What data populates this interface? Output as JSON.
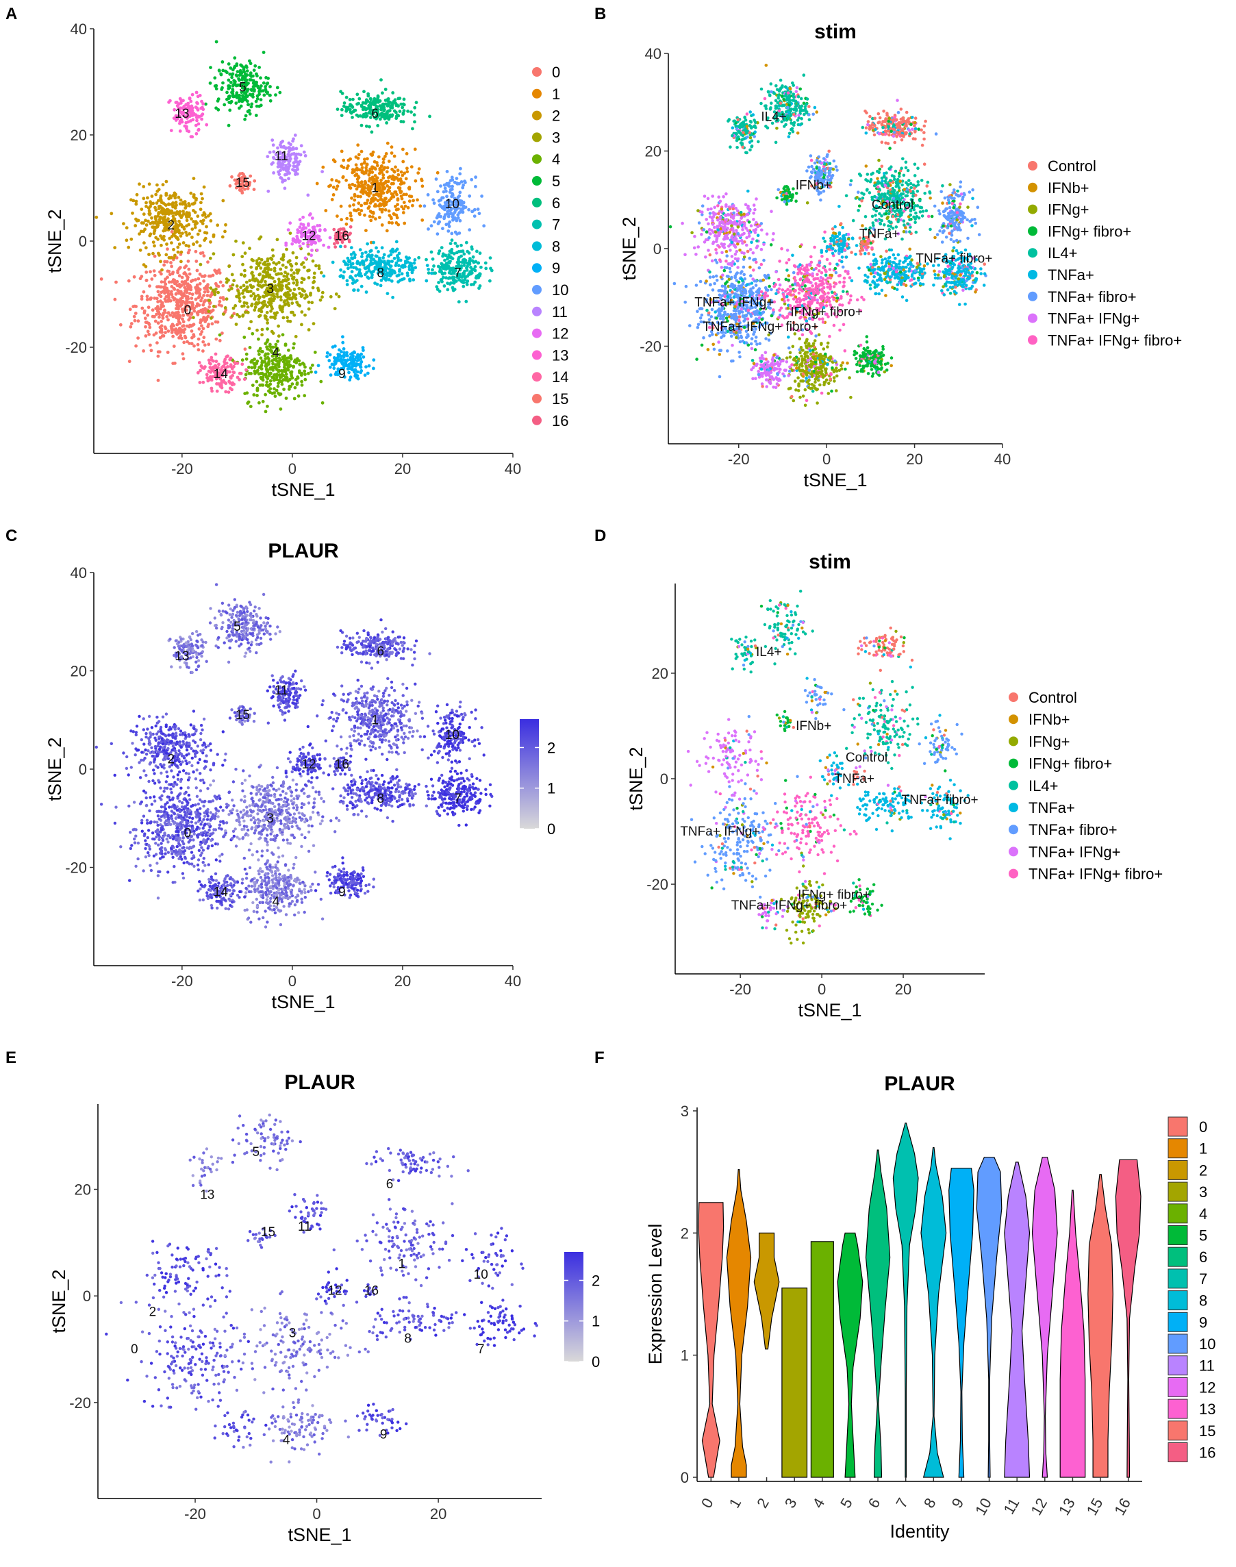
{
  "colors": {
    "clusters": [
      "#F8766D",
      "#E58700",
      "#C99800",
      "#A3A500",
      "#6BB100",
      "#00BA38",
      "#00BF7D",
      "#00C0AF",
      "#00BCD8",
      "#00B0F6",
      "#619CFF",
      "#B983FF",
      "#E76BF3",
      "#FD61D1",
      "#FF67A4",
      "#F8766D",
      "#F45E84"
    ],
    "stim": [
      "#F8766D",
      "#D39200",
      "#93AA00",
      "#00BA38",
      "#00C19F",
      "#00B9E3",
      "#619CFF",
      "#DB72FB",
      "#FF61C3"
    ],
    "gradient_low": "#d9d9d9",
    "gradient_high": "#3a2ee0"
  },
  "chart_data": [
    {
      "panel": "A",
      "type": "scatter",
      "title": "",
      "xlabel": "tSNE_1",
      "ylabel": "tSNE_2",
      "xlim": [
        -36,
        40
      ],
      "ylim": [
        -40,
        40
      ],
      "xticks": [
        "-20",
        "0",
        "20",
        "40"
      ],
      "yticks": [
        "-20",
        "0",
        "20",
        "40"
      ],
      "legend_labels": [
        "0",
        "1",
        "2",
        "3",
        "4",
        "5",
        "6",
        "7",
        "8",
        "9",
        "10",
        "11",
        "12",
        "13",
        "14",
        "15",
        "16"
      ],
      "cluster_labels": [
        {
          "label": "0",
          "x": -19,
          "y": -13
        },
        {
          "label": "1",
          "x": 15,
          "y": 10
        },
        {
          "label": "2",
          "x": -22,
          "y": 3
        },
        {
          "label": "3",
          "x": -4,
          "y": -9
        },
        {
          "label": "4",
          "x": -3,
          "y": -21
        },
        {
          "label": "5",
          "x": -9,
          "y": 29
        },
        {
          "label": "6",
          "x": 15,
          "y": 24
        },
        {
          "label": "7",
          "x": 30,
          "y": -6
        },
        {
          "label": "8",
          "x": 16,
          "y": -6
        },
        {
          "label": "9",
          "x": 9,
          "y": -25
        },
        {
          "label": "10",
          "x": 29,
          "y": 7
        },
        {
          "label": "11",
          "x": -2,
          "y": 16
        },
        {
          "label": "12",
          "x": 3,
          "y": 1
        },
        {
          "label": "13",
          "x": -20,
          "y": 24
        },
        {
          "label": "14",
          "x": -13,
          "y": -25
        },
        {
          "label": "15",
          "x": -9,
          "y": 11
        },
        {
          "label": "16",
          "x": 9,
          "y": 1
        }
      ]
    },
    {
      "panel": "B",
      "type": "scatter",
      "title": "stim",
      "xlabel": "tSNE_1",
      "ylabel": "tSNE_2",
      "xlim": [
        -36,
        40
      ],
      "ylim": [
        -40,
        40
      ],
      "xticks": [
        "-20",
        "0",
        "20",
        "40"
      ],
      "yticks": [
        "-20",
        "0",
        "20",
        "40"
      ],
      "legend_labels": [
        "Control",
        "IFNb+",
        "IFNg+",
        "IFNg+ fibro+",
        "IL4+",
        "TNFa+",
        "TNFa+ fibro+",
        "TNFa+ IFNg+",
        "TNFa+ IFNg+ fibro+"
      ],
      "group_labels": [
        {
          "label": "IL4+",
          "x": -12,
          "y": 27
        },
        {
          "label": "IFNb+",
          "x": -3,
          "y": 13
        },
        {
          "label": "Control",
          "x": 15,
          "y": 9
        },
        {
          "label": "TNFa+",
          "x": 12,
          "y": 3
        },
        {
          "label": "TNFa+ fibro+",
          "x": 29,
          "y": -2
        },
        {
          "label": "IFNg+ fibro+",
          "x": 0,
          "y": -13
        },
        {
          "label": "TNFa+ IFNg+",
          "x": -21,
          "y": -11
        },
        {
          "label": "TNFa+ IFNg+ fibro+",
          "x": -15,
          "y": -16
        }
      ]
    },
    {
      "panel": "C",
      "type": "scatter",
      "title": "PLAUR",
      "xlabel": "tSNE_1",
      "ylabel": "tSNE_2",
      "xlim": [
        -36,
        40
      ],
      "ylim": [
        -40,
        40
      ],
      "xticks": [
        "-20",
        "0",
        "20",
        "40"
      ],
      "yticks": [
        "-20",
        "0",
        "20",
        "40"
      ],
      "colorbar_ticks": [
        "2",
        "1",
        "0"
      ],
      "colorbar_range": [
        0,
        2.7
      ],
      "cluster_labels": [
        {
          "label": "0",
          "x": -19,
          "y": -13
        },
        {
          "label": "1",
          "x": 15,
          "y": 10
        },
        {
          "label": "2",
          "x": -22,
          "y": 2
        },
        {
          "label": "3",
          "x": -4,
          "y": -10
        },
        {
          "label": "4",
          "x": -3,
          "y": -27
        },
        {
          "label": "5",
          "x": -10,
          "y": 29
        },
        {
          "label": "6",
          "x": 16,
          "y": 24
        },
        {
          "label": "7",
          "x": 30,
          "y": -6
        },
        {
          "label": "8",
          "x": 16,
          "y": -6
        },
        {
          "label": "9",
          "x": 9,
          "y": -25
        },
        {
          "label": "10",
          "x": 29,
          "y": 7
        },
        {
          "label": "11",
          "x": -2,
          "y": 16
        },
        {
          "label": "12",
          "x": 3,
          "y": 1
        },
        {
          "label": "13",
          "x": -20,
          "y": 23
        },
        {
          "label": "14",
          "x": -13,
          "y": -25
        },
        {
          "label": "15",
          "x": -9,
          "y": 11
        },
        {
          "label": "16",
          "x": 9,
          "y": 1
        }
      ]
    },
    {
      "panel": "D",
      "type": "scatter",
      "title": "stim",
      "xlabel": "tSNE_1",
      "ylabel": "tSNE_2",
      "xlim": [
        -36,
        40
      ],
      "ylim": [
        -37,
        37
      ],
      "xticks": [
        "-20",
        "0",
        "20"
      ],
      "yticks": [
        "-20",
        "0",
        "20"
      ],
      "legend_labels": [
        "Control",
        "IFNb+",
        "IFNg+",
        "IFNg+ fibro+",
        "IL4+",
        "TNFa+",
        "TNFa+ fibro+",
        "TNFa+ IFNg+",
        "TNFa+ IFNg+ fibro+"
      ],
      "group_labels": [
        {
          "label": "IL4+",
          "x": -13,
          "y": 24
        },
        {
          "label": "IFNb+",
          "x": -2,
          "y": 10
        },
        {
          "label": "Control",
          "x": 11,
          "y": 4
        },
        {
          "label": "TNFa+",
          "x": 8,
          "y": 0
        },
        {
          "label": "TNFa+ fibro+",
          "x": 29,
          "y": -4
        },
        {
          "label": "TNFa+ IFNg+",
          "x": -25,
          "y": -10
        },
        {
          "label": "TNFa+ IFNg+ fibro+",
          "x": -8,
          "y": -24
        },
        {
          "label": "IFNg+ fibro+",
          "x": 3,
          "y": -22
        }
      ]
    },
    {
      "panel": "E",
      "type": "scatter",
      "title": "PLAUR",
      "xlabel": "tSNE_1",
      "ylabel": "tSNE_2",
      "xlim": [
        -36,
        37
      ],
      "ylim": [
        -38,
        36
      ],
      "xticks": [
        "-20",
        "0",
        "20"
      ],
      "yticks": [
        "-20",
        "0",
        "20"
      ],
      "colorbar_ticks": [
        "2",
        "1",
        "0"
      ],
      "colorbar_range": [
        0,
        2.7
      ],
      "cluster_labels": [
        {
          "label": "0",
          "x": -30,
          "y": -10
        },
        {
          "label": "2",
          "x": -27,
          "y": -3
        },
        {
          "label": "3",
          "x": -4,
          "y": -7
        },
        {
          "label": "4",
          "x": -5,
          "y": -27
        },
        {
          "label": "5",
          "x": -10,
          "y": 27
        },
        {
          "label": "6",
          "x": 12,
          "y": 21
        },
        {
          "label": "7",
          "x": 27,
          "y": -10
        },
        {
          "label": "8",
          "x": 15,
          "y": -8
        },
        {
          "label": "9",
          "x": 11,
          "y": -26
        },
        {
          "label": "10",
          "x": 27,
          "y": 4
        },
        {
          "label": "11",
          "x": -2,
          "y": 13
        },
        {
          "label": "12",
          "x": 3,
          "y": 1
        },
        {
          "label": "13",
          "x": -18,
          "y": 19
        },
        {
          "label": "15",
          "x": -8,
          "y": 12
        },
        {
          "label": "16",
          "x": 9,
          "y": 1
        },
        {
          "label": "1",
          "x": 14,
          "y": 6
        }
      ]
    },
    {
      "panel": "F",
      "type": "violin",
      "title": "PLAUR",
      "xlabel": "Identity",
      "ylabel": "Expression Level",
      "ylim": [
        0,
        3
      ],
      "yticks": [
        "0",
        "1",
        "2",
        "3"
      ],
      "categories": [
        "0",
        "1",
        "2",
        "3",
        "4",
        "5",
        "6",
        "7",
        "8",
        "9",
        "10",
        "11",
        "12",
        "13",
        "15",
        "16"
      ],
      "profiles": [
        {
          "max": 2.25,
          "shape": [
            [
              0,
              0.1
            ],
            [
              0.3,
              0.35
            ],
            [
              0.6,
              0.05
            ],
            [
              1.0,
              0.12
            ],
            [
              1.4,
              0.3
            ],
            [
              1.8,
              0.45
            ],
            [
              2.05,
              0.5
            ],
            [
              2.25,
              0.48
            ]
          ]
        },
        {
          "max": 2.52,
          "shape": [
            [
              0,
              0.3
            ],
            [
              0.1,
              0.3
            ],
            [
              0.25,
              0.15
            ],
            [
              0.6,
              0.04
            ],
            [
              1.0,
              0.12
            ],
            [
              1.4,
              0.35
            ],
            [
              1.8,
              0.48
            ],
            [
              2.1,
              0.3
            ],
            [
              2.35,
              0.08
            ],
            [
              2.52,
              0.02
            ]
          ]
        },
        {
          "max": 2.0,
          "shape": [
            [
              1.05,
              0.05
            ],
            [
              1.3,
              0.2
            ],
            [
              1.6,
              0.5
            ],
            [
              1.8,
              0.3
            ],
            [
              2.0,
              0.3
            ]
          ]
        },
        {
          "max": 1.55,
          "shape": [
            [
              0,
              0.5
            ],
            [
              1.55,
              0.5
            ]
          ]
        },
        {
          "max": 1.93,
          "shape": [
            [
              0,
              0.45
            ],
            [
              1.93,
              0.45
            ]
          ]
        },
        {
          "max": 2.0,
          "shape": [
            [
              0,
              0.2
            ],
            [
              0.2,
              0.15
            ],
            [
              0.6,
              0.05
            ],
            [
              0.9,
              0.12
            ],
            [
              1.3,
              0.4
            ],
            [
              1.6,
              0.5
            ],
            [
              1.9,
              0.3
            ],
            [
              2.0,
              0.2
            ]
          ]
        },
        {
          "max": 2.68,
          "shape": [
            [
              0,
              0.15
            ],
            [
              0.25,
              0.12
            ],
            [
              0.6,
              0.02
            ],
            [
              1.0,
              0.15
            ],
            [
              1.4,
              0.3
            ],
            [
              1.8,
              0.48
            ],
            [
              2.2,
              0.35
            ],
            [
              2.5,
              0.12
            ],
            [
              2.68,
              0.02
            ]
          ]
        },
        {
          "max": 2.9,
          "shape": [
            [
              0,
              0.02
            ],
            [
              0.7,
              0.02
            ],
            [
              1.4,
              0.05
            ],
            [
              1.9,
              0.15
            ],
            [
              2.2,
              0.4
            ],
            [
              2.45,
              0.5
            ],
            [
              2.65,
              0.35
            ],
            [
              2.9,
              0.02
            ]
          ]
        },
        {
          "max": 2.7,
          "shape": [
            [
              0,
              0.4
            ],
            [
              0.2,
              0.15
            ],
            [
              0.5,
              0.02
            ],
            [
              1.0,
              0.05
            ],
            [
              1.5,
              0.2
            ],
            [
              2.0,
              0.5
            ],
            [
              2.3,
              0.35
            ],
            [
              2.55,
              0.1
            ],
            [
              2.7,
              0.02
            ]
          ]
        },
        {
          "max": 2.53,
          "shape": [
            [
              0,
              0.1
            ],
            [
              0.3,
              0.04
            ],
            [
              0.7,
              0.02
            ],
            [
              1.1,
              0.1
            ],
            [
              1.5,
              0.25
            ],
            [
              2.0,
              0.45
            ],
            [
              2.35,
              0.5
            ],
            [
              2.53,
              0.4
            ]
          ]
        },
        {
          "max": 2.62,
          "shape": [
            [
              0,
              0.04
            ],
            [
              0.3,
              0.02
            ],
            [
              0.8,
              0.02
            ],
            [
              1.3,
              0.1
            ],
            [
              1.8,
              0.3
            ],
            [
              2.2,
              0.5
            ],
            [
              2.5,
              0.45
            ],
            [
              2.62,
              0.2
            ]
          ]
        },
        {
          "max": 2.58,
          "shape": [
            [
              0,
              0.5
            ],
            [
              0.3,
              0.45
            ],
            [
              0.8,
              0.3
            ],
            [
              1.2,
              0.2
            ],
            [
              1.6,
              0.35
            ],
            [
              2.0,
              0.5
            ],
            [
              2.3,
              0.35
            ],
            [
              2.58,
              0.05
            ]
          ]
        },
        {
          "max": 2.62,
          "shape": [
            [
              0,
              0.1
            ],
            [
              0.2,
              0.04
            ],
            [
              0.5,
              0.02
            ],
            [
              1.0,
              0.1
            ],
            [
              1.5,
              0.3
            ],
            [
              2.0,
              0.5
            ],
            [
              2.35,
              0.4
            ],
            [
              2.62,
              0.1
            ]
          ]
        },
        {
          "max": 2.35,
          "shape": [
            [
              0,
              0.5
            ],
            [
              0.4,
              0.5
            ],
            [
              0.8,
              0.5
            ],
            [
              1.2,
              0.45
            ],
            [
              1.6,
              0.3
            ],
            [
              2.0,
              0.12
            ],
            [
              2.35,
              0.02
            ]
          ]
        },
        {
          "max": 2.48,
          "shape": [
            [
              0,
              0.3
            ],
            [
              0.3,
              0.3
            ],
            [
              0.7,
              0.35
            ],
            [
              1.1,
              0.45
            ],
            [
              1.5,
              0.5
            ],
            [
              1.9,
              0.45
            ],
            [
              2.2,
              0.2
            ],
            [
              2.48,
              0.03
            ]
          ]
        },
        {
          "max": 2.6,
          "shape": [
            [
              0,
              0.05
            ],
            [
              0.3,
              0.04
            ],
            [
              0.8,
              0.02
            ],
            [
              1.3,
              0.05
            ],
            [
              1.7,
              0.25
            ],
            [
              2.0,
              0.45
            ],
            [
              2.3,
              0.5
            ],
            [
              2.6,
              0.35
            ]
          ]
        }
      ]
    }
  ],
  "panel_labels": [
    "A",
    "B",
    "C",
    "D",
    "E",
    "F"
  ]
}
